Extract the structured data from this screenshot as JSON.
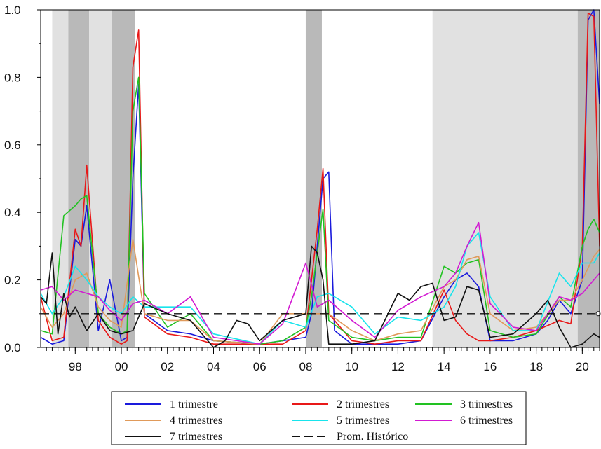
{
  "chart_data": {
    "type": "line",
    "xlabel": "",
    "ylabel": "",
    "x_ticks": [
      "98",
      "00",
      "02",
      "04",
      "06",
      "08",
      "10",
      "12",
      "14",
      "16",
      "18",
      "20"
    ],
    "y_ticks": [
      "0.0",
      "0.2",
      "0.4",
      "0.6",
      "0.8",
      "1.0"
    ],
    "ylim": [
      0,
      1
    ],
    "xlim": [
      1996.5,
      2020.75
    ],
    "grid": false,
    "legend_position": "bottom",
    "shaded_regions": [
      {
        "start": 1997.0,
        "end": 1997.7,
        "tone": "light"
      },
      {
        "start": 1997.7,
        "end": 1998.6,
        "tone": "dark"
      },
      {
        "start": 1998.6,
        "end": 1999.6,
        "tone": "light"
      },
      {
        "start": 1999.6,
        "end": 2000.6,
        "tone": "dark"
      },
      {
        "start": 2008.0,
        "end": 2008.7,
        "tone": "dark"
      },
      {
        "start": 2013.5,
        "end": 2019.8,
        "tone": "light"
      },
      {
        "start": 2019.8,
        "end": 2020.75,
        "tone": "dark"
      }
    ],
    "series": [
      {
        "name": "1 trimestre",
        "color": "#1a1adc",
        "x": [
          1996.5,
          1997,
          1997.5,
          1998,
          1998.25,
          1998.5,
          1999,
          1999.5,
          2000,
          2000.25,
          2000.5,
          2000.75,
          2001,
          2002,
          2003,
          2004,
          2006,
          2007,
          2008,
          2008.25,
          2008.5,
          2008.75,
          2009,
          2009.25,
          2010,
          2011,
          2012,
          2013,
          2014,
          2014.5,
          2015,
          2015.25,
          2015.5,
          2016,
          2017,
          2018,
          2018.5,
          2019,
          2019.5,
          2020,
          2020.25,
          2020.5,
          2020.75
        ],
        "y": [
          0.03,
          0.01,
          0.02,
          0.32,
          0.3,
          0.42,
          0.05,
          0.2,
          0.02,
          0.03,
          0.5,
          0.78,
          0.1,
          0.05,
          0.04,
          0.02,
          0.01,
          0.02,
          0.03,
          0.1,
          0.3,
          0.5,
          0.52,
          0.05,
          0.01,
          0.01,
          0.01,
          0.02,
          0.15,
          0.2,
          0.22,
          0.2,
          0.18,
          0.02,
          0.02,
          0.04,
          0.08,
          0.14,
          0.1,
          0.2,
          0.97,
          1.0,
          0.72
        ]
      },
      {
        "name": "2 trimestres",
        "color": "#e81818",
        "x": [
          1996.5,
          1997,
          1997.5,
          1998,
          1998.25,
          1998.5,
          1999,
          1999.5,
          2000,
          2000.25,
          2000.5,
          2000.75,
          2001,
          2002,
          2003,
          2004,
          2006,
          2007,
          2008,
          2008.25,
          2008.5,
          2008.75,
          2009,
          2010,
          2011,
          2012,
          2013,
          2014,
          2014.5,
          2015,
          2015.5,
          2016,
          2017,
          2018,
          2019,
          2019.5,
          2020,
          2020.25,
          2020.5,
          2020.75
        ],
        "y": [
          0.15,
          0.02,
          0.03,
          0.35,
          0.3,
          0.54,
          0.08,
          0.03,
          0.01,
          0.02,
          0.83,
          0.94,
          0.09,
          0.04,
          0.03,
          0.01,
          0.01,
          0.01,
          0.05,
          0.2,
          0.35,
          0.53,
          0.1,
          0.02,
          0.01,
          0.02,
          0.02,
          0.17,
          0.08,
          0.04,
          0.02,
          0.02,
          0.03,
          0.05,
          0.08,
          0.07,
          0.3,
          0.99,
          0.98,
          0.3
        ]
      },
      {
        "name": "3 trimestres",
        "color": "#22c222",
        "x": [
          1996.5,
          1997,
          1997.5,
          1998,
          1998.25,
          1998.5,
          1999,
          1999.5,
          2000,
          2000.25,
          2000.5,
          2000.75,
          2001,
          2002,
          2003,
          2004,
          2006,
          2007,
          2008,
          2008.25,
          2008.5,
          2008.75,
          2009,
          2010,
          2011,
          2012,
          2013,
          2014,
          2014.5,
          2015,
          2015.5,
          2016,
          2017,
          2018,
          2019,
          2019.5,
          2020,
          2020.25,
          2020.5,
          2020.75
        ],
        "y": [
          0.05,
          0.04,
          0.39,
          0.42,
          0.44,
          0.45,
          0.1,
          0.06,
          0.04,
          0.05,
          0.7,
          0.8,
          0.16,
          0.06,
          0.1,
          0.02,
          0.01,
          0.02,
          0.06,
          0.15,
          0.28,
          0.41,
          0.08,
          0.03,
          0.02,
          0.03,
          0.03,
          0.24,
          0.22,
          0.25,
          0.26,
          0.05,
          0.03,
          0.04,
          0.15,
          0.12,
          0.3,
          0.35,
          0.38,
          0.34
        ]
      },
      {
        "name": "4 trimestres",
        "color": "#e09a5a",
        "x": [
          1996.5,
          1997,
          1997.5,
          1998,
          1998.5,
          1999,
          1999.5,
          2000,
          2000.5,
          2001,
          2002,
          2003,
          2004,
          2006,
          2007,
          2008,
          2008.5,
          2009,
          2010,
          2011,
          2012,
          2013,
          2014,
          2014.5,
          2015,
          2015.5,
          2016,
          2017,
          2018,
          2019,
          2019.5,
          2020,
          2020.5,
          2020.75
        ],
        "y": [
          0.12,
          0.06,
          0.1,
          0.2,
          0.22,
          0.12,
          0.08,
          0.06,
          0.32,
          0.1,
          0.08,
          0.08,
          0.02,
          0.01,
          0.1,
          0.1,
          0.1,
          0.1,
          0.05,
          0.02,
          0.04,
          0.05,
          0.18,
          0.2,
          0.26,
          0.27,
          0.1,
          0.05,
          0.06,
          0.14,
          0.14,
          0.2,
          0.27,
          0.29
        ]
      },
      {
        "name": "5 trimestres",
        "color": "#18e4ec",
        "x": [
          1996.5,
          1997,
          1997.5,
          1998,
          1998.5,
          1999,
          1999.5,
          2000,
          2000.5,
          2001,
          2002,
          2003,
          2004,
          2006,
          2007,
          2008,
          2008.5,
          2009,
          2010,
          2011,
          2012,
          2013,
          2014,
          2014.5,
          2015,
          2015.5,
          2016,
          2017,
          2018,
          2019,
          2019.5,
          2020,
          2020.5,
          2020.75
        ],
        "y": [
          0.16,
          0.1,
          0.15,
          0.24,
          0.2,
          0.15,
          0.12,
          0.1,
          0.15,
          0.12,
          0.12,
          0.12,
          0.04,
          0.01,
          0.08,
          0.06,
          0.15,
          0.16,
          0.12,
          0.04,
          0.09,
          0.08,
          0.12,
          0.18,
          0.3,
          0.34,
          0.15,
          0.05,
          0.05,
          0.22,
          0.18,
          0.25,
          0.25,
          0.28
        ]
      },
      {
        "name": "6 trimestres",
        "color": "#d21ad2",
        "x": [
          1996.5,
          1997,
          1997.5,
          1998,
          1998.5,
          1999,
          1999.5,
          2000,
          2000.5,
          2001,
          2002,
          2003,
          2004,
          2006,
          2007,
          2008,
          2008.5,
          2009,
          2010,
          2011,
          2012,
          2013,
          2014,
          2014.5,
          2015,
          2015.5,
          2016,
          2017,
          2018,
          2019,
          2019.5,
          2020,
          2020.5,
          2020.75
        ],
        "y": [
          0.17,
          0.18,
          0.14,
          0.17,
          0.16,
          0.15,
          0.11,
          0.08,
          0.13,
          0.14,
          0.1,
          0.15,
          0.03,
          0.01,
          0.07,
          0.25,
          0.12,
          0.14,
          0.08,
          0.03,
          0.11,
          0.15,
          0.18,
          0.22,
          0.3,
          0.37,
          0.13,
          0.06,
          0.05,
          0.15,
          0.14,
          0.16,
          0.2,
          0.22
        ]
      },
      {
        "name": "7 trimestres",
        "color": "#111111",
        "x": [
          1996.5,
          1996.75,
          1997,
          1997.25,
          1997.5,
          1997.75,
          1998,
          1998.5,
          1999,
          1999.5,
          2000,
          2000.5,
          2001,
          2002,
          2003,
          2004,
          2004.5,
          2005,
          2005.5,
          2006,
          2007,
          2008,
          2008.25,
          2008.5,
          2008.75,
          2009,
          2010,
          2011,
          2012,
          2012.5,
          2013,
          2013.5,
          2014,
          2014.5,
          2015,
          2015.5,
          2016,
          2017,
          2018,
          2018.5,
          2019,
          2019.5,
          2020,
          2020.5,
          2020.75
        ],
        "y": [
          0.15,
          0.13,
          0.28,
          0.04,
          0.16,
          0.09,
          0.12,
          0.05,
          0.1,
          0.05,
          0.04,
          0.05,
          0.13,
          0.1,
          0.08,
          0.0,
          0.02,
          0.08,
          0.07,
          0.02,
          0.08,
          0.1,
          0.3,
          0.28,
          0.2,
          0.01,
          0.01,
          0.02,
          0.16,
          0.14,
          0.18,
          0.19,
          0.08,
          0.09,
          0.18,
          0.17,
          0.03,
          0.04,
          0.1,
          0.14,
          0.06,
          0.0,
          0.01,
          0.04,
          0.03
        ]
      },
      {
        "name": "Prom. Histórico",
        "color": "#111111",
        "dashed": true,
        "x": [
          1996.5,
          2020.75
        ],
        "y": [
          0.1,
          0.1
        ]
      }
    ]
  }
}
